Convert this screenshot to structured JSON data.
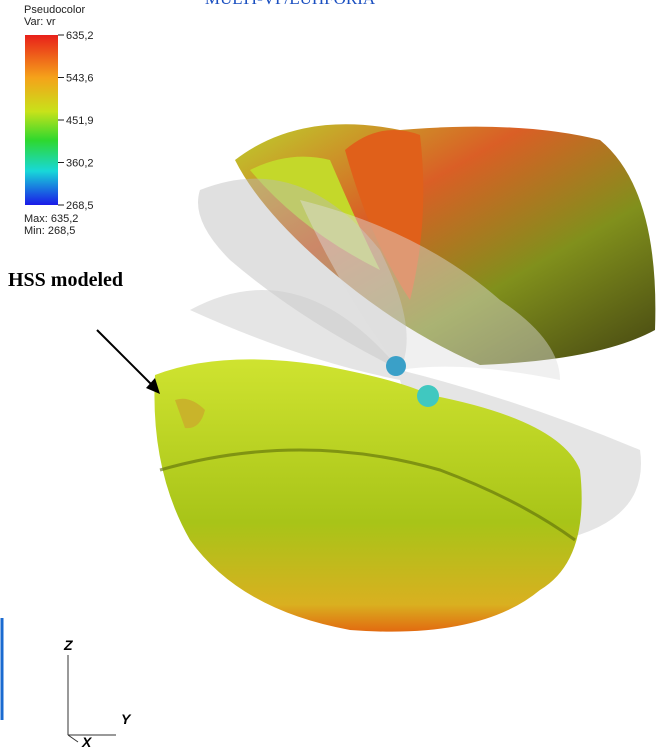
{
  "header": {
    "title": "MULTI-VP/EUHFORIA"
  },
  "legend": {
    "name": "Pseudocolor",
    "variable": "Var: vr",
    "ticks": [
      "635,2",
      "543,6",
      "451,9",
      "360,2",
      "268,5"
    ],
    "max": "Max: 635,2",
    "min": "Min: 268,5"
  },
  "annotation": {
    "label": "HSS modeled"
  },
  "axes": {
    "z": "Z",
    "y": "Y",
    "x": "X"
  }
}
